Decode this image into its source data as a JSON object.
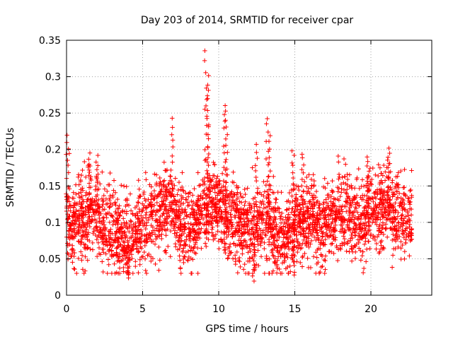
{
  "chart_data": {
    "type": "scatter",
    "title": "Day 203 of 2014, SRMTID for receiver cpar",
    "xlabel": "GPS time / hours",
    "ylabel": "SRMTID / TECUs",
    "xlim": [
      0,
      24
    ],
    "ylim": [
      0,
      0.35
    ],
    "xticks": [
      0,
      5,
      10,
      15,
      20
    ],
    "xtick_labels": [
      "0",
      "5",
      "10",
      "15",
      "20"
    ],
    "yticks": [
      0,
      0.05,
      0.1,
      0.15,
      0.2,
      0.25,
      0.3,
      0.35
    ],
    "ytick_labels": [
      "0",
      "0.05",
      "0.1",
      "0.15",
      "0.2",
      "0.25",
      "0.3",
      "0.35"
    ],
    "grid": true,
    "marker": "+",
    "color": "#ff0000",
    "x_span": [
      0,
      22.7
    ],
    "baseline": [
      [
        0,
        0.105
      ],
      [
        0.5,
        0.095
      ],
      [
        1.0,
        0.1
      ],
      [
        1.5,
        0.115
      ],
      [
        2.0,
        0.115
      ],
      [
        2.5,
        0.095
      ],
      [
        3.0,
        0.09
      ],
      [
        3.5,
        0.08
      ],
      [
        4.0,
        0.07
      ],
      [
        4.5,
        0.075
      ],
      [
        5.0,
        0.095
      ],
      [
        5.5,
        0.1
      ],
      [
        6.0,
        0.11
      ],
      [
        6.5,
        0.125
      ],
      [
        7.0,
        0.115
      ],
      [
        7.5,
        0.095
      ],
      [
        8.0,
        0.09
      ],
      [
        8.5,
        0.095
      ],
      [
        9.0,
        0.115
      ],
      [
        9.5,
        0.125
      ],
      [
        10.0,
        0.12
      ],
      [
        10.5,
        0.11
      ],
      [
        11.0,
        0.1
      ],
      [
        11.5,
        0.095
      ],
      [
        12.0,
        0.085
      ],
      [
        12.5,
        0.095
      ],
      [
        13.0,
        0.105
      ],
      [
        13.5,
        0.09
      ],
      [
        14.0,
        0.08
      ],
      [
        14.5,
        0.085
      ],
      [
        15.0,
        0.095
      ],
      [
        15.5,
        0.1
      ],
      [
        16.0,
        0.11
      ],
      [
        16.5,
        0.1
      ],
      [
        17.0,
        0.095
      ],
      [
        17.5,
        0.1
      ],
      [
        18.0,
        0.115
      ],
      [
        18.5,
        0.11
      ],
      [
        19.0,
        0.105
      ],
      [
        19.5,
        0.1
      ],
      [
        20.0,
        0.115
      ],
      [
        20.5,
        0.12
      ],
      [
        21.0,
        0.125
      ],
      [
        21.5,
        0.115
      ],
      [
        22.0,
        0.11
      ],
      [
        22.7,
        0.095
      ]
    ],
    "spikes": [
      {
        "x": 0.05,
        "y": 0.22
      },
      {
        "x": 1.0,
        "y": 0.17
      },
      {
        "x": 1.5,
        "y": 0.193
      },
      {
        "x": 2.0,
        "y": 0.19
      },
      {
        "x": 6.9,
        "y": 0.24
      },
      {
        "x": 9.15,
        "y": 0.337
      },
      {
        "x": 9.25,
        "y": 0.3
      },
      {
        "x": 9.3,
        "y": 0.28
      },
      {
        "x": 10.4,
        "y": 0.262
      },
      {
        "x": 10.5,
        "y": 0.25
      },
      {
        "x": 12.5,
        "y": 0.205
      },
      {
        "x": 13.2,
        "y": 0.244
      },
      {
        "x": 13.3,
        "y": 0.22
      },
      {
        "x": 14.9,
        "y": 0.2
      },
      {
        "x": 15.5,
        "y": 0.195
      },
      {
        "x": 19.8,
        "y": 0.187
      },
      {
        "x": 21.2,
        "y": 0.2
      },
      {
        "x": 4.0,
        "y": 0.022
      },
      {
        "x": 12.3,
        "y": 0.022
      },
      {
        "x": 14.9,
        "y": 0.028
      }
    ]
  }
}
